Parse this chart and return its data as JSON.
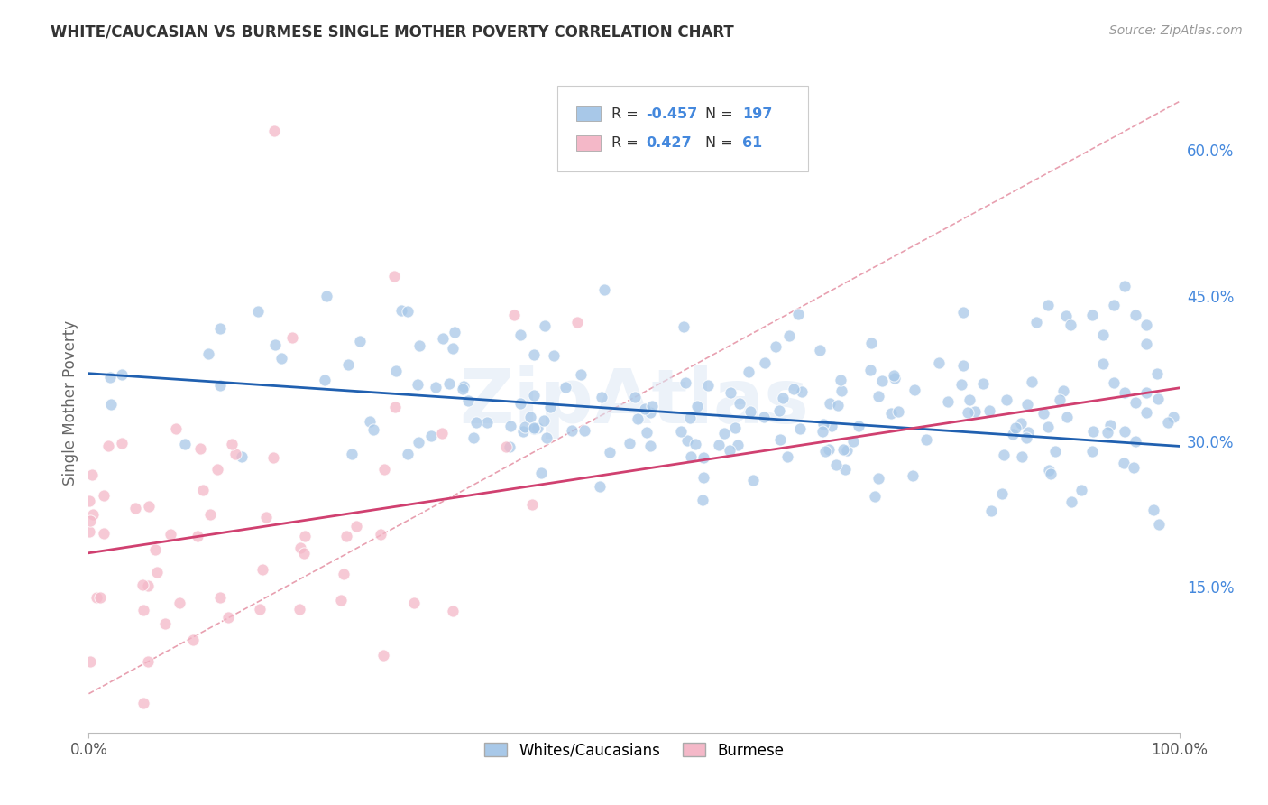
{
  "title": "WHITE/CAUCASIAN VS BURMESE SINGLE MOTHER POVERTY CORRELATION CHART",
  "source": "Source: ZipAtlas.com",
  "ylabel": "Single Mother Poverty",
  "xlim": [
    0,
    1
  ],
  "ylim": [
    0,
    0.68
  ],
  "ytick_labels": [
    "15.0%",
    "30.0%",
    "45.0%",
    "60.0%"
  ],
  "ytick_values": [
    0.15,
    0.3,
    0.45,
    0.6
  ],
  "xtick_labels": [
    "0.0%",
    "100.0%"
  ],
  "xtick_values": [
    0.0,
    1.0
  ],
  "blue_R": -0.457,
  "blue_N": 197,
  "pink_R": 0.427,
  "pink_N": 61,
  "blue_color": "#a8c8e8",
  "pink_color": "#f4b8c8",
  "blue_line_color": "#2060b0",
  "pink_line_color": "#d04070",
  "dashed_line_color": "#e8a0b0",
  "legend_label_blue": "Whites/Caucasians",
  "legend_label_pink": "Burmese",
  "watermark": "ZipAtlas",
  "background_color": "#ffffff",
  "grid_color": "#e0e0e0",
  "title_color": "#333333",
  "blue_scatter_seed": 42,
  "pink_scatter_seed": 7,
  "blue_trend_x": [
    0.0,
    1.0
  ],
  "blue_trend_y": [
    0.37,
    0.295
  ],
  "pink_trend_x": [
    0.0,
    1.0
  ],
  "pink_trend_y": [
    0.185,
    0.355
  ],
  "dashed_trend_x": [
    0.0,
    1.0
  ],
  "dashed_trend_y": [
    0.04,
    0.65
  ]
}
